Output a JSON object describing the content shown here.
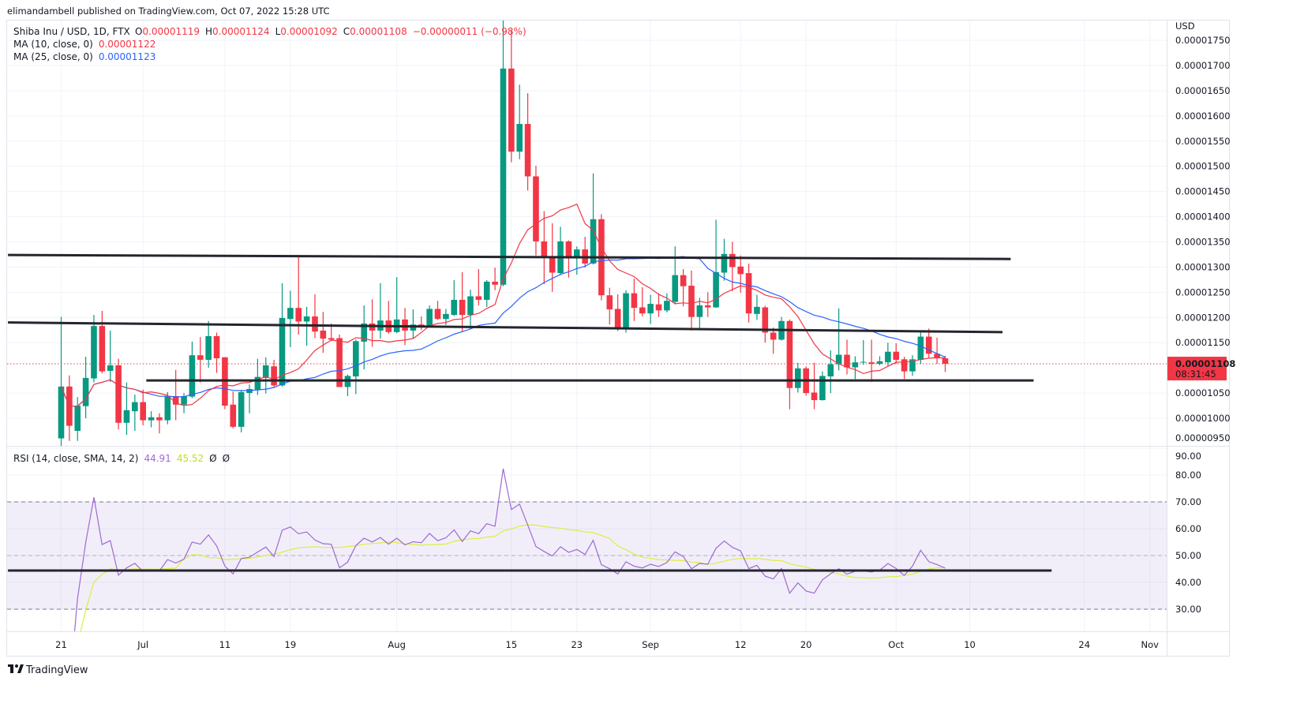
{
  "publish_line": "elimandambell published on TradingView.com, Oct 07, 2022 15:28 UTC",
  "legend": {
    "symbol": "Shiba Inu / USD, 1D, FTX",
    "o_label": "O",
    "o": "0.00001119",
    "h_label": "H",
    "h": "0.00001124",
    "l_label": "L",
    "l": "0.00001092",
    "c_label": "C",
    "c": "0.00001108",
    "change": "−0.00000011 (−0.98%)",
    "ma10_label": "MA (10, close, 0)",
    "ma10_value": "0.00001122",
    "ma25_label": "MA (25, close, 0)",
    "ma25_value": "0.00001123"
  },
  "rsi_legend": {
    "label": "RSI (14, close, SMA, 14, 2)",
    "rsi_value": "44.91",
    "sma_value": "45.52",
    "extra1": "Ø",
    "extra2": "Ø"
  },
  "price_axis": {
    "currency": "USD",
    "ticks": [
      "0.00001750",
      "0.00001700",
      "0.00001650",
      "0.00001600",
      "0.00001550",
      "0.00001500",
      "0.00001450",
      "0.00001400",
      "0.00001350",
      "0.00001300",
      "0.00001250",
      "0.00001200",
      "0.00001150",
      "0.00001050",
      "0.00001000",
      "0.00000950"
    ],
    "current_price": "0.00001108",
    "countdown": "08:31:45"
  },
  "rsi_axis": {
    "ticks": [
      "90.00",
      "80.00",
      "70.00",
      "60.00",
      "50.00",
      "40.00",
      "30.00"
    ]
  },
  "footer": {
    "brand": "TradingView"
  },
  "colors": {
    "up": "#089981",
    "down": "#f23645",
    "ma10": "#f23645",
    "ma25": "#2962ff",
    "rsi": "#9c6ad3",
    "rsi_sma": "#dcef3c",
    "drawing": "#24262e",
    "band": "#7e57c2"
  },
  "chart_data": {
    "type": "candlestick",
    "title": "Shiba Inu / USD, 1D, FTX",
    "price_scale": 1e-08,
    "first_date": "2022-06-21",
    "ylim": [
      940,
      1790
    ],
    "x_labels": [
      {
        "text": "21",
        "day": 0
      },
      {
        "text": "Jul",
        "day": 10
      },
      {
        "text": "11",
        "day": 20
      },
      {
        "text": "19",
        "day": 28
      },
      {
        "text": "Aug",
        "day": 41
      },
      {
        "text": "15",
        "day": 55
      },
      {
        "text": "23",
        "day": 63
      },
      {
        "text": "Sep",
        "day": 72
      },
      {
        "text": "12",
        "day": 83
      },
      {
        "text": "20",
        "day": 91
      },
      {
        "text": "Oct",
        "day": 102
      },
      {
        "text": "10",
        "day": 111
      },
      {
        "text": "24",
        "day": 125
      },
      {
        "text": "Nov",
        "day": 133
      }
    ],
    "ohlc": [
      [
        960,
        1201,
        930,
        1063
      ],
      [
        1063,
        1085,
        955,
        985
      ],
      [
        975,
        1042,
        955,
        1025
      ],
      [
        1024,
        1122,
        1000,
        1080
      ],
      [
        1079,
        1205,
        1071,
        1183
      ],
      [
        1183,
        1213,
        1089,
        1093
      ],
      [
        1094,
        1174,
        1072,
        1105
      ],
      [
        1105,
        1118,
        978,
        991
      ],
      [
        991,
        1071,
        967,
        1016
      ],
      [
        1014,
        1047,
        975,
        1032
      ],
      [
        1032,
        1057,
        986,
        996
      ],
      [
        996,
        1014,
        982,
        1002
      ],
      [
        1002,
        1010,
        970,
        996
      ],
      [
        996,
        1052,
        988,
        1044
      ],
      [
        1044,
        1096,
        996,
        1027
      ],
      [
        1027,
        1050,
        1010,
        1044
      ],
      [
        1043,
        1152,
        1040,
        1125
      ],
      [
        1125,
        1161,
        1071,
        1116
      ],
      [
        1116,
        1193,
        1100,
        1163
      ],
      [
        1163,
        1170,
        1090,
        1119
      ],
      [
        1121,
        1121,
        1018,
        1025
      ],
      [
        1027,
        1053,
        980,
        983
      ],
      [
        983,
        1056,
        972,
        1052
      ],
      [
        1050,
        1067,
        1010,
        1058
      ],
      [
        1057,
        1118,
        1046,
        1082
      ],
      [
        1080,
        1121,
        1049,
        1105
      ],
      [
        1103,
        1116,
        1061,
        1065
      ],
      [
        1065,
        1268,
        1063,
        1199
      ],
      [
        1197,
        1253,
        1141,
        1219
      ],
      [
        1219,
        1321,
        1166,
        1192
      ],
      [
        1192,
        1221,
        1144,
        1202
      ],
      [
        1202,
        1246,
        1159,
        1172
      ],
      [
        1174,
        1211,
        1130,
        1158
      ],
      [
        1159,
        1188,
        1153,
        1156
      ],
      [
        1159,
        1166,
        1062,
        1062
      ],
      [
        1062,
        1087,
        1044,
        1084
      ],
      [
        1083,
        1156,
        1048,
        1153
      ],
      [
        1152,
        1224,
        1097,
        1188
      ],
      [
        1188,
        1236,
        1142,
        1174
      ],
      [
        1174,
        1268,
        1158,
        1194
      ],
      [
        1194,
        1233,
        1168,
        1171
      ],
      [
        1171,
        1280,
        1169,
        1196
      ],
      [
        1196,
        1219,
        1145,
        1174
      ],
      [
        1174,
        1216,
        1158,
        1186
      ],
      [
        1186,
        1202,
        1175,
        1183
      ],
      [
        1183,
        1224,
        1181,
        1217
      ],
      [
        1217,
        1233,
        1195,
        1197
      ],
      [
        1197,
        1217,
        1185,
        1207
      ],
      [
        1205,
        1274,
        1203,
        1235
      ],
      [
        1235,
        1290,
        1171,
        1205
      ],
      [
        1205,
        1255,
        1178,
        1242
      ],
      [
        1242,
        1296,
        1224,
        1235
      ],
      [
        1235,
        1274,
        1221,
        1271
      ],
      [
        1271,
        1299,
        1254,
        1265
      ],
      [
        1265,
        1791,
        1262,
        1694
      ],
      [
        1694,
        1771,
        1508,
        1529
      ],
      [
        1529,
        1662,
        1514,
        1584
      ],
      [
        1584,
        1645,
        1452,
        1480
      ],
      [
        1480,
        1501,
        1323,
        1351
      ],
      [
        1351,
        1411,
        1266,
        1319
      ],
      [
        1320,
        1387,
        1251,
        1289
      ],
      [
        1288,
        1380,
        1284,
        1351
      ],
      [
        1351,
        1353,
        1279,
        1317
      ],
      [
        1317,
        1341,
        1285,
        1335
      ],
      [
        1335,
        1360,
        1299,
        1307
      ],
      [
        1307,
        1486,
        1305,
        1395
      ],
      [
        1395,
        1405,
        1234,
        1244
      ],
      [
        1244,
        1259,
        1186,
        1216
      ],
      [
        1217,
        1246,
        1173,
        1179
      ],
      [
        1179,
        1254,
        1170,
        1248
      ],
      [
        1248,
        1277,
        1193,
        1219
      ],
      [
        1220,
        1260,
        1202,
        1208
      ],
      [
        1208,
        1245,
        1187,
        1227
      ],
      [
        1226,
        1248,
        1201,
        1214
      ],
      [
        1214,
        1248,
        1210,
        1233
      ],
      [
        1231,
        1341,
        1226,
        1284
      ],
      [
        1284,
        1296,
        1222,
        1262
      ],
      [
        1263,
        1293,
        1174,
        1201
      ],
      [
        1201,
        1239,
        1176,
        1224
      ],
      [
        1224,
        1250,
        1201,
        1220
      ],
      [
        1220,
        1394,
        1219,
        1290
      ],
      [
        1289,
        1356,
        1273,
        1326
      ],
      [
        1326,
        1350,
        1252,
        1300
      ],
      [
        1301,
        1323,
        1249,
        1286
      ],
      [
        1288,
        1307,
        1190,
        1208
      ],
      [
        1207,
        1245,
        1195,
        1221
      ],
      [
        1220,
        1223,
        1150,
        1170
      ],
      [
        1170,
        1180,
        1128,
        1156
      ],
      [
        1156,
        1201,
        1154,
        1193
      ],
      [
        1193,
        1196,
        1018,
        1060
      ],
      [
        1060,
        1110,
        1051,
        1099
      ],
      [
        1099,
        1103,
        1045,
        1050
      ],
      [
        1051,
        1110,
        1018,
        1036
      ],
      [
        1036,
        1093,
        1035,
        1084
      ],
      [
        1083,
        1135,
        1050,
        1107
      ],
      [
        1107,
        1218,
        1095,
        1126
      ],
      [
        1126,
        1156,
        1087,
        1101
      ],
      [
        1101,
        1123,
        1078,
        1111
      ],
      [
        1111,
        1155,
        1106,
        1112
      ],
      [
        1111,
        1156,
        1072,
        1108
      ],
      [
        1108,
        1123,
        1105,
        1113
      ],
      [
        1111,
        1150,
        1104,
        1132
      ],
      [
        1132,
        1149,
        1108,
        1116
      ],
      [
        1117,
        1122,
        1078,
        1093
      ],
      [
        1093,
        1125,
        1084,
        1117
      ],
      [
        1116,
        1173,
        1108,
        1162
      ],
      [
        1162,
        1178,
        1120,
        1128
      ],
      [
        1128,
        1160,
        1108,
        1119
      ],
      [
        1119,
        1124,
        1092,
        1108
      ]
    ],
    "indicators": {
      "ma_fast": 10,
      "ma_slow": 25,
      "rsi_period": 14,
      "rsi_sma": 14,
      "rsi_levels": [
        70,
        50,
        30
      ],
      "rsi_ylim": [
        28,
        90
      ]
    },
    "drawings": [
      {
        "name": "resistance-line-upper",
        "pane": "price",
        "from": [
          -6.5,
          1324
        ],
        "to": [
          116,
          1316
        ]
      },
      {
        "name": "resistance-line-middle",
        "pane": "price",
        "from": [
          -6.5,
          1190
        ],
        "to": [
          115,
          1171
        ]
      },
      {
        "name": "support-line-lower",
        "pane": "price",
        "from": [
          10.4,
          1075
        ],
        "to": [
          118.8,
          1075
        ]
      },
      {
        "name": "rsi-horizontal-line",
        "pane": "rsi",
        "from": [
          -6.5,
          44.4
        ],
        "to": [
          121,
          44.4
        ]
      }
    ]
  }
}
